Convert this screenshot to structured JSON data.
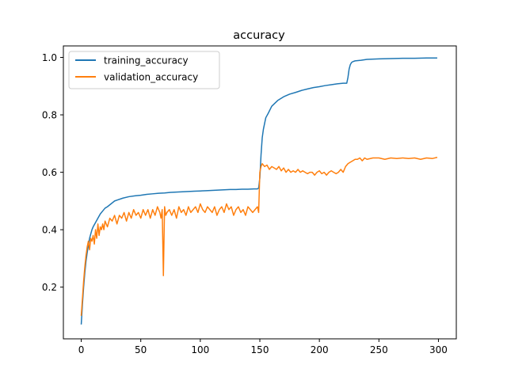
{
  "chart_data": {
    "type": "line",
    "title": "accuracy",
    "xlabel": "",
    "ylabel": "",
    "xlim": [
      -15,
      315
    ],
    "ylim": [
      0.02,
      1.04
    ],
    "xticks": [
      0,
      50,
      100,
      150,
      200,
      250,
      300
    ],
    "yticks": [
      0.2,
      0.4,
      0.6,
      0.8,
      1.0
    ],
    "ytick_labels": [
      "0.2",
      "0.4",
      "0.6",
      "0.8",
      "1.0"
    ],
    "grid": false,
    "legend_position": "top-left",
    "series": [
      {
        "name": "training_accuracy",
        "color": "#1f77b4",
        "x": [
          0,
          1,
          2,
          3,
          4,
          5,
          6,
          7,
          8,
          9,
          10,
          12,
          14,
          16,
          18,
          20,
          22,
          25,
          28,
          30,
          35,
          40,
          45,
          50,
          55,
          60,
          65,
          70,
          75,
          80,
          85,
          90,
          95,
          100,
          105,
          110,
          115,
          120,
          125,
          130,
          135,
          140,
          145,
          148,
          149,
          150,
          151,
          152,
          153,
          154,
          155,
          157,
          160,
          165,
          170,
          175,
          180,
          185,
          190,
          195,
          200,
          205,
          210,
          215,
          220,
          223,
          224,
          225,
          226,
          227,
          228,
          230,
          235,
          240,
          250,
          260,
          270,
          280,
          290,
          299
        ],
        "values": [
          0.07,
          0.14,
          0.2,
          0.25,
          0.29,
          0.32,
          0.345,
          0.37,
          0.385,
          0.4,
          0.41,
          0.425,
          0.44,
          0.455,
          0.465,
          0.475,
          0.48,
          0.49,
          0.5,
          0.503,
          0.51,
          0.515,
          0.518,
          0.52,
          0.523,
          0.525,
          0.527,
          0.528,
          0.53,
          0.531,
          0.532,
          0.533,
          0.534,
          0.535,
          0.536,
          0.537,
          0.538,
          0.539,
          0.54,
          0.54,
          0.541,
          0.541,
          0.542,
          0.542,
          0.545,
          0.58,
          0.66,
          0.72,
          0.75,
          0.77,
          0.79,
          0.805,
          0.83,
          0.85,
          0.863,
          0.872,
          0.878,
          0.885,
          0.89,
          0.895,
          0.898,
          0.902,
          0.905,
          0.908,
          0.91,
          0.91,
          0.93,
          0.96,
          0.975,
          0.982,
          0.985,
          0.988,
          0.99,
          0.993,
          0.995,
          0.996,
          0.997,
          0.997,
          0.998,
          0.998
        ]
      },
      {
        "name": "validation_accuracy",
        "color": "#ff7f0e",
        "x": [
          0,
          1,
          2,
          3,
          4,
          5,
          6,
          7,
          8,
          9,
          10,
          11,
          12,
          13,
          14,
          15,
          16,
          17,
          18,
          19,
          20,
          22,
          24,
          26,
          28,
          30,
          32,
          34,
          36,
          38,
          40,
          42,
          44,
          46,
          48,
          50,
          52,
          54,
          56,
          58,
          60,
          62,
          64,
          66,
          67,
          68,
          69,
          70,
          71,
          72,
          74,
          76,
          78,
          80,
          82,
          84,
          86,
          88,
          90,
          92,
          94,
          96,
          98,
          100,
          102,
          104,
          106,
          108,
          110,
          112,
          114,
          116,
          118,
          120,
          122,
          124,
          126,
          128,
          130,
          132,
          134,
          136,
          138,
          140,
          142,
          144,
          146,
          148,
          149,
          150,
          151,
          152,
          154,
          156,
          158,
          160,
          162,
          164,
          166,
          168,
          170,
          172,
          174,
          176,
          178,
          180,
          182,
          184,
          186,
          188,
          190,
          192,
          194,
          196,
          198,
          200,
          202,
          204,
          206,
          208,
          210,
          212,
          214,
          216,
          218,
          220,
          222,
          224,
          226,
          228,
          230,
          232,
          234,
          236,
          238,
          240,
          245,
          250,
          255,
          260,
          265,
          270,
          275,
          280,
          285,
          290,
          295,
          299
        ],
        "values": [
          0.1,
          0.16,
          0.22,
          0.27,
          0.31,
          0.34,
          0.36,
          0.33,
          0.37,
          0.36,
          0.38,
          0.35,
          0.4,
          0.37,
          0.42,
          0.38,
          0.41,
          0.4,
          0.42,
          0.4,
          0.43,
          0.41,
          0.44,
          0.43,
          0.45,
          0.42,
          0.45,
          0.44,
          0.46,
          0.43,
          0.46,
          0.44,
          0.47,
          0.45,
          0.46,
          0.44,
          0.47,
          0.45,
          0.47,
          0.44,
          0.47,
          0.45,
          0.48,
          0.46,
          0.44,
          0.47,
          0.24,
          0.48,
          0.45,
          0.46,
          0.47,
          0.45,
          0.47,
          0.44,
          0.48,
          0.46,
          0.47,
          0.45,
          0.48,
          0.46,
          0.47,
          0.48,
          0.46,
          0.49,
          0.47,
          0.46,
          0.48,
          0.47,
          0.46,
          0.48,
          0.45,
          0.47,
          0.48,
          0.46,
          0.49,
          0.47,
          0.48,
          0.45,
          0.47,
          0.48,
          0.46,
          0.47,
          0.45,
          0.48,
          0.47,
          0.46,
          0.47,
          0.48,
          0.46,
          0.6,
          0.62,
          0.63,
          0.62,
          0.625,
          0.61,
          0.62,
          0.615,
          0.61,
          0.62,
          0.605,
          0.615,
          0.6,
          0.61,
          0.6,
          0.605,
          0.6,
          0.61,
          0.6,
          0.605,
          0.6,
          0.595,
          0.6,
          0.6,
          0.59,
          0.6,
          0.605,
          0.595,
          0.6,
          0.59,
          0.6,
          0.605,
          0.6,
          0.595,
          0.6,
          0.61,
          0.6,
          0.62,
          0.63,
          0.635,
          0.64,
          0.645,
          0.645,
          0.65,
          0.64,
          0.65,
          0.645,
          0.65,
          0.65,
          0.645,
          0.65,
          0.648,
          0.65,
          0.648,
          0.65,
          0.645,
          0.65,
          0.648,
          0.652
        ]
      }
    ]
  }
}
